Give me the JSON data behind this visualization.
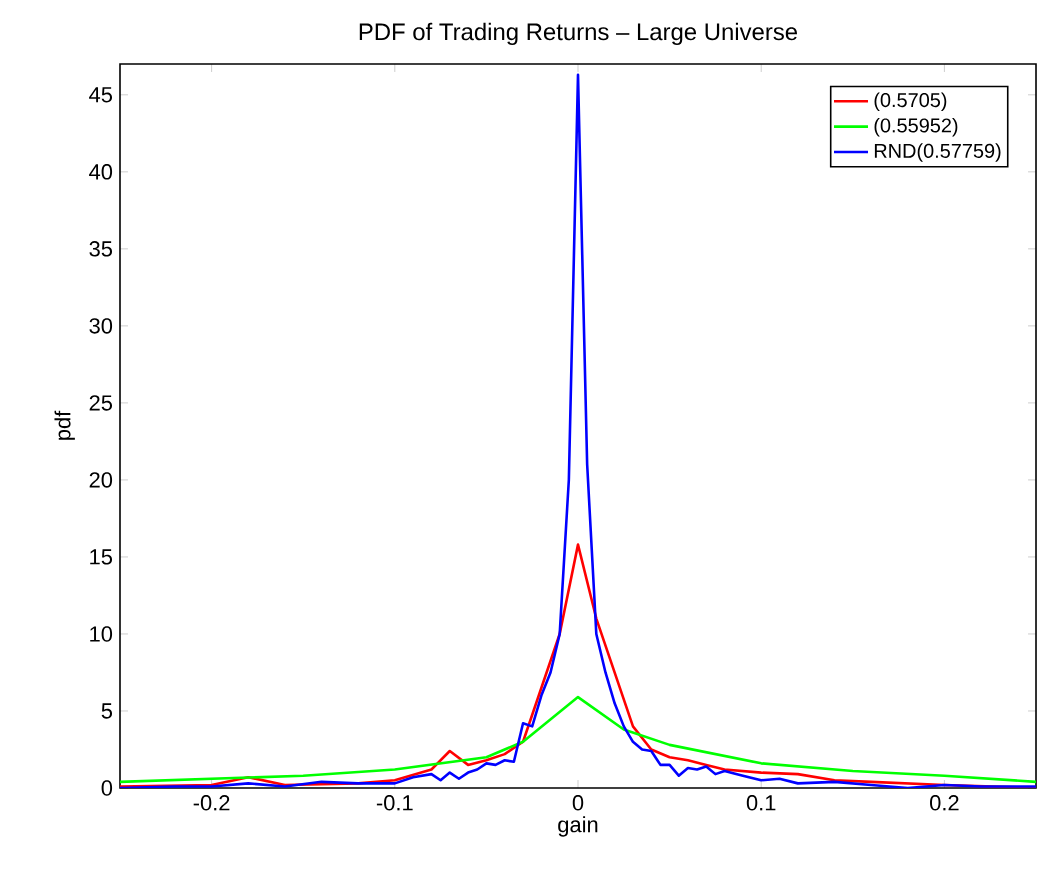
{
  "chart_data": {
    "type": "line",
    "title": "PDF of Trading Returns – Large Universe",
    "xlabel": "gain",
    "ylabel": "pdf",
    "xlim": [
      -0.25,
      0.25
    ],
    "ylim": [
      0,
      47
    ],
    "xticks": [
      -0.2,
      -0.1,
      0,
      0.1,
      0.2
    ],
    "yticks": [
      0,
      5,
      10,
      15,
      20,
      25,
      30,
      35,
      40,
      45
    ],
    "legend": "top right",
    "grid": false,
    "series": [
      {
        "name": "(0.5705)",
        "color": "#ff0000",
        "x": [
          -0.25,
          -0.2,
          -0.18,
          -0.16,
          -0.12,
          -0.1,
          -0.08,
          -0.07,
          -0.06,
          -0.05,
          -0.04,
          -0.03,
          -0.02,
          -0.01,
          0,
          0.01,
          0.02,
          0.03,
          0.04,
          0.05,
          0.06,
          0.07,
          0.08,
          0.1,
          0.12,
          0.14,
          0.16,
          0.2,
          0.25
        ],
        "values": [
          0.1,
          0.2,
          0.7,
          0.2,
          0.3,
          0.5,
          1.2,
          2.4,
          1.5,
          1.8,
          2.2,
          3.0,
          6.5,
          10,
          15.8,
          11,
          7.5,
          4,
          2.5,
          2.0,
          1.8,
          1.5,
          1.2,
          1.0,
          0.9,
          0.5,
          0.4,
          0.2,
          0.0
        ]
      },
      {
        "name": "(0.55952)",
        "color": "#00ff00",
        "x": [
          -0.25,
          -0.2,
          -0.15,
          -0.1,
          -0.05,
          -0.03,
          0,
          0.025,
          0.05,
          0.1,
          0.15,
          0.2,
          0.25
        ],
        "values": [
          0.4,
          0.6,
          0.8,
          1.2,
          2.0,
          3.0,
          5.9,
          3.8,
          2.8,
          1.6,
          1.1,
          0.8,
          0.4
        ]
      },
      {
        "name": "RND(0.57759)",
        "color": "#0000ff",
        "x": [
          -0.25,
          -0.22,
          -0.2,
          -0.18,
          -0.16,
          -0.14,
          -0.12,
          -0.1,
          -0.09,
          -0.08,
          -0.075,
          -0.07,
          -0.065,
          -0.06,
          -0.055,
          -0.05,
          -0.045,
          -0.04,
          -0.035,
          -0.03,
          -0.025,
          -0.02,
          -0.015,
          -0.01,
          -0.005,
          0,
          0.005,
          0.01,
          0.015,
          0.02,
          0.025,
          0.03,
          0.035,
          0.04,
          0.045,
          0.05,
          0.055,
          0.06,
          0.065,
          0.07,
          0.075,
          0.08,
          0.09,
          0.1,
          0.11,
          0.12,
          0.14,
          0.16,
          0.18,
          0.2,
          0.22,
          0.25
        ],
        "values": [
          0.0,
          0.1,
          0.1,
          0.3,
          0.1,
          0.4,
          0.3,
          0.3,
          0.7,
          0.9,
          0.5,
          1.0,
          0.6,
          1.0,
          1.2,
          1.6,
          1.5,
          1.8,
          1.7,
          4.2,
          4.0,
          6.0,
          7.5,
          10,
          20,
          46.3,
          21,
          10,
          7.5,
          5.5,
          4,
          3,
          2.5,
          2.4,
          1.5,
          1.5,
          0.8,
          1.3,
          1.2,
          1.4,
          0.9,
          1.1,
          0.8,
          0.5,
          0.6,
          0.3,
          0.4,
          0.2,
          0.0,
          0.2,
          0.1,
          0.1
        ]
      }
    ]
  }
}
